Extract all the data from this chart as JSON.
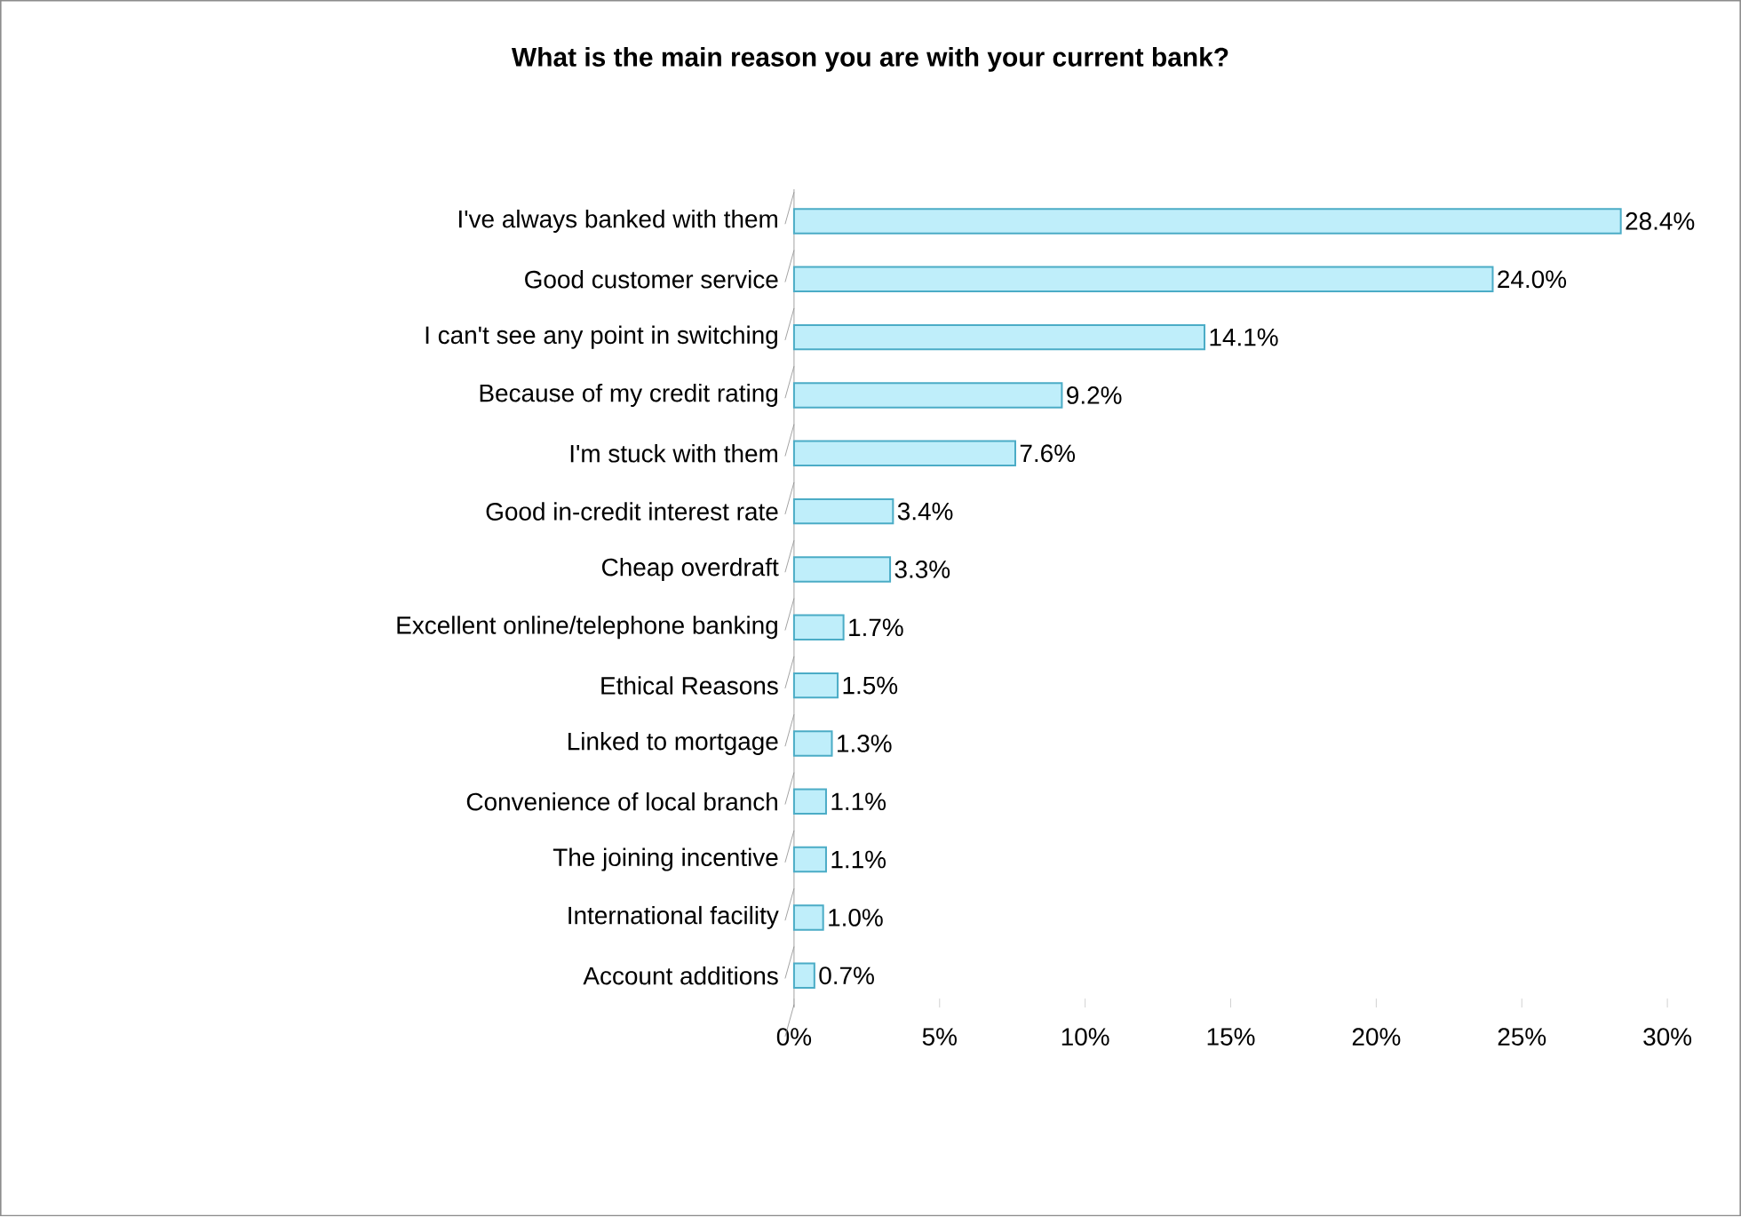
{
  "chart_data": {
    "type": "bar",
    "orientation": "horizontal",
    "title": "What is the main reason you are with your current bank?",
    "categories": [
      "I've always banked with them",
      "Good customer service",
      "I can't see any point in switching",
      "Because of my credit rating",
      "I'm stuck with them",
      "Good in-credit interest rate",
      "Cheap overdraft",
      "Excellent online/telephone banking",
      "Ethical Reasons",
      "Linked to mortgage",
      "Convenience of local branch",
      "The joining incentive",
      "International facility",
      "Account additions"
    ],
    "values": [
      28.4,
      24.0,
      14.1,
      9.2,
      7.6,
      3.4,
      3.3,
      1.7,
      1.5,
      1.3,
      1.1,
      1.1,
      1.0,
      0.7
    ],
    "value_labels": [
      "28.4%",
      "24.0%",
      "14.1%",
      "9.2%",
      "7.6%",
      "3.4%",
      "3.3%",
      "1.7%",
      "1.5%",
      "1.3%",
      "1.1%",
      "1.1%",
      "1.0%",
      "0.7%"
    ],
    "color": "#bfeefa",
    "xlim": [
      0,
      30
    ],
    "xticks": [
      {
        "value": 0,
        "label": "0%"
      },
      {
        "value": 5,
        "label": "5%"
      },
      {
        "value": 10,
        "label": "10%"
      },
      {
        "value": 15,
        "label": "15%"
      },
      {
        "value": 20,
        "label": "20%"
      },
      {
        "value": 25,
        "label": "25%"
      },
      {
        "value": 30,
        "label": "30%"
      }
    ]
  }
}
